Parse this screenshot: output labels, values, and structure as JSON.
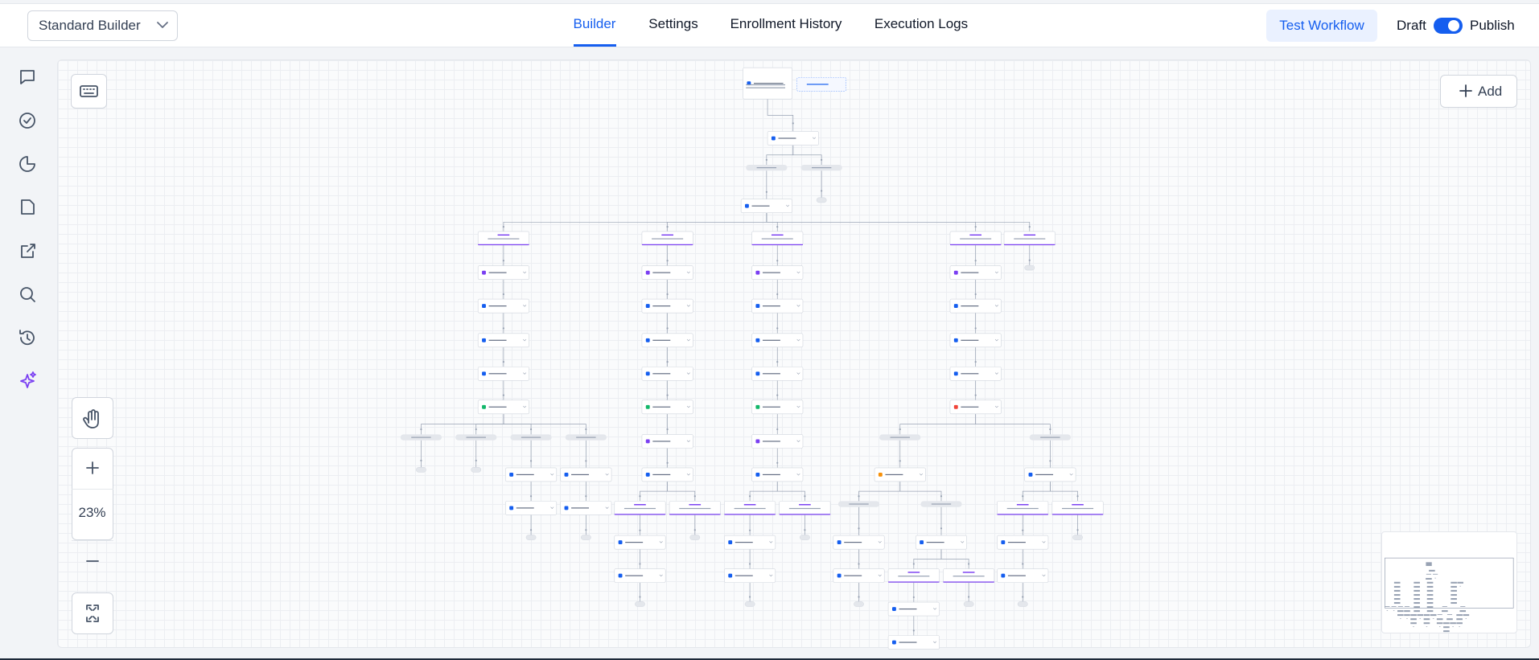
{
  "header": {
    "dropdown": "Standard Builder",
    "tabs": [
      "Builder",
      "Settings",
      "Enrollment History",
      "Execution Logs"
    ],
    "test_button": "Test Workflow",
    "draft": "Draft",
    "publish": "Publish"
  },
  "canvas": {
    "add_button": "Add",
    "zoom_level": "23%"
  }
}
